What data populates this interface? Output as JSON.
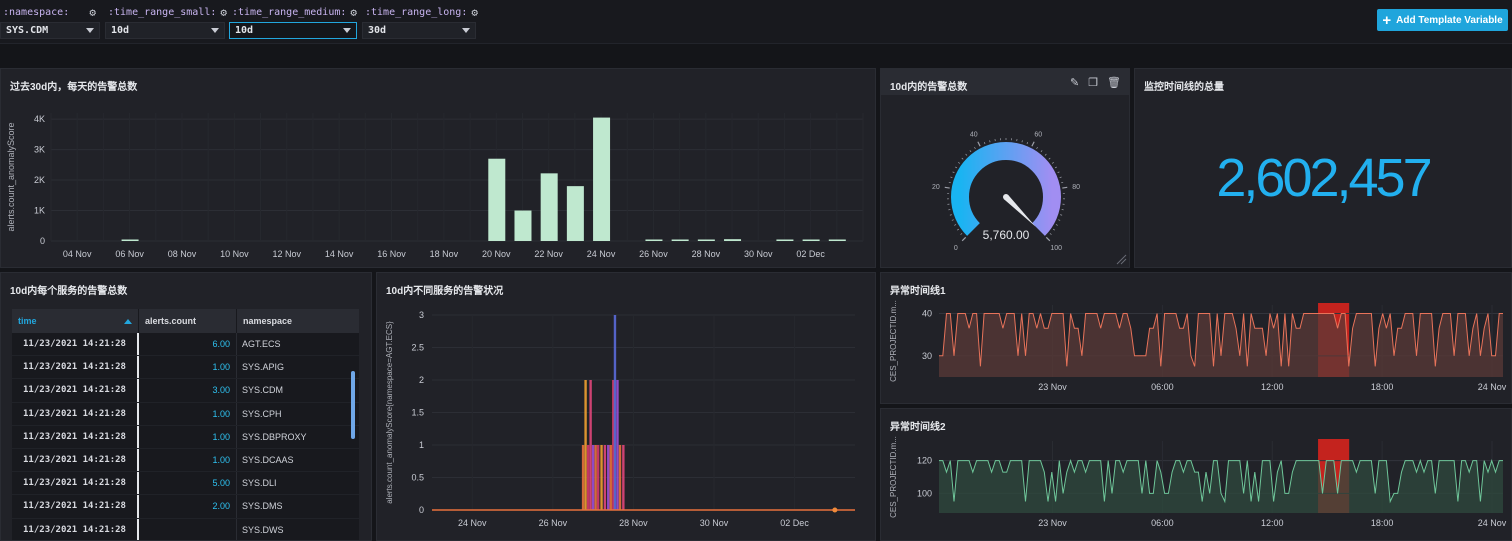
{
  "template_vars": [
    {
      "label": ":namespace:",
      "value": "SYS.CDM"
    },
    {
      "label": ":time_range_small:",
      "value": "10d"
    },
    {
      "label": ":time_range_medium:",
      "value": "10d"
    },
    {
      "label": ":time_range_long:",
      "value": "30d"
    }
  ],
  "add_template_variable": "Add Template Variable",
  "cells": {
    "daily_alerts": {
      "title": "过去30d内，每天的告警总数",
      "ylabel": "alerts.count_anomalyScore",
      "chart_data": {
        "type": "bar",
        "ylim": [
          0,
          4200
        ],
        "yticks": [
          "0",
          "1K",
          "2K",
          "3K",
          "4K"
        ],
        "ytick_values": [
          0,
          1000,
          2000,
          3000,
          4000
        ],
        "x_tick_labels": [
          "04 Nov",
          "06 Nov",
          "08 Nov",
          "10 Nov",
          "12 Nov",
          "14 Nov",
          "16 Nov",
          "18 Nov",
          "20 Nov",
          "22 Nov",
          "24 Nov",
          "26 Nov",
          "28 Nov",
          "30 Nov",
          "02 Dec"
        ],
        "x_start": "2021-11-03",
        "bars": [
          {
            "date": "2021-11-06",
            "value": 40
          },
          {
            "date": "2021-11-20",
            "value": 2700
          },
          {
            "date": "2021-11-21",
            "value": 1000
          },
          {
            "date": "2021-11-22",
            "value": 2220
          },
          {
            "date": "2021-11-23",
            "value": 1800
          },
          {
            "date": "2021-11-24",
            "value": 4050
          },
          {
            "date": "2021-11-26",
            "value": 30
          },
          {
            "date": "2021-11-27",
            "value": 40
          },
          {
            "date": "2021-11-28",
            "value": 20
          },
          {
            "date": "2021-11-29",
            "value": 60
          },
          {
            "date": "2021-12-01",
            "value": 30
          },
          {
            "date": "2021-12-02",
            "value": 20
          },
          {
            "date": "2021-12-03",
            "value": 30
          }
        ]
      }
    },
    "alerts_10d": {
      "title": "10d内的告警总数",
      "gauge": {
        "min": 0,
        "max": 100,
        "ticks": [
          "0",
          "20",
          "40",
          "60",
          "80",
          "100"
        ],
        "value_label": "5,760.00",
        "fill_fraction": 1
      }
    },
    "monitor_total": {
      "title": "监控时间线的总量",
      "value": "2,602,457"
    },
    "service_table": {
      "title": "10d内每个服务的告警总数",
      "columns": [
        "time",
        "alerts.count",
        "namespace"
      ],
      "rows": [
        [
          "11/23/2021  14:21:28",
          "6.00",
          "AGT.ECS"
        ],
        [
          "11/23/2021  14:21:28",
          "1.00",
          "SYS.APIG"
        ],
        [
          "11/23/2021  14:21:28",
          "3.00",
          "SYS.CDM"
        ],
        [
          "11/23/2021  14:21:28",
          "1.00",
          "SYS.CPH"
        ],
        [
          "11/23/2021  14:21:28",
          "1.00",
          "SYS.DBPROXY"
        ],
        [
          "11/23/2021  14:21:28",
          "1.00",
          "SYS.DCAAS"
        ],
        [
          "11/23/2021  14:21:28",
          "5.00",
          "SYS.DLI"
        ],
        [
          "11/23/2021  14:21:28",
          "2.00",
          "SYS.DMS"
        ],
        [
          "11/23/2021  14:21:28",
          "",
          "SYS.DWS"
        ]
      ]
    },
    "service_status": {
      "title": "10d内不同服务的告警状况",
      "ylabel": "alerts.count_anomalyScore{namespace=AGT.ECS}",
      "chart_data": {
        "type": "bar",
        "ylim": [
          0,
          3
        ],
        "yticks": [
          "0",
          "0.5",
          "1",
          "1.5",
          "2",
          "2.5",
          "3"
        ],
        "ytick_values": [
          0,
          0.5,
          1,
          1.5,
          2,
          2.5,
          3
        ],
        "x_tick_labels": [
          "24 Nov",
          "26 Nov",
          "28 Nov",
          "30 Nov",
          "02 Dec"
        ],
        "x_start": "2021-11-23T00:00",
        "x_end": "2021-12-03T12:00",
        "colors": [
          "#e8713c",
          "#d43a6a",
          "#9b4fd6",
          "#f0a030",
          "#e0467a",
          "#5a6ad8"
        ],
        "bars": [
          {
            "t": "2021-11-26T18:00",
            "value": 1,
            "color": "#e8713c"
          },
          {
            "t": "2021-11-26T19:30",
            "value": 2,
            "color": "#f0a030"
          },
          {
            "t": "2021-11-26T21:00",
            "value": 1,
            "color": "#d43a6a"
          },
          {
            "t": "2021-11-26T22:30",
            "value": 2,
            "color": "#e0467a"
          },
          {
            "t": "2021-11-27T00:00",
            "value": 1,
            "color": "#9b4fd6"
          },
          {
            "t": "2021-11-27T01:30",
            "value": 1,
            "color": "#e8713c"
          },
          {
            "t": "2021-11-27T03:00",
            "value": 1,
            "color": "#d43a6a"
          },
          {
            "t": "2021-11-27T05:00",
            "value": 1,
            "color": "#f0a030"
          },
          {
            "t": "2021-11-27T07:00",
            "value": 1,
            "color": "#e0467a"
          },
          {
            "t": "2021-11-27T09:00",
            "value": 1,
            "color": "#9b4fd6"
          },
          {
            "t": "2021-11-27T10:30",
            "value": 1,
            "color": "#e8713c"
          },
          {
            "t": "2021-11-27T12:00",
            "value": 2,
            "color": "#d43a6a"
          },
          {
            "t": "2021-11-27T13:00",
            "value": 3,
            "color": "#5a6ad8"
          },
          {
            "t": "2021-11-27T14:30",
            "value": 2,
            "color": "#9b4fd6"
          },
          {
            "t": "2021-11-27T16:00",
            "value": 1,
            "color": "#e8713c"
          },
          {
            "t": "2021-11-27T18:00",
            "value": 1,
            "color": "#e0467a"
          }
        ],
        "marker": {
          "t": "2021-12-03T00:00",
          "value": 0,
          "color": "#f08a3a"
        }
      }
    },
    "anomaly1": {
      "title": "异常时间线1",
      "ylabel": "CES_PROJECTID.m...",
      "chart_data": {
        "type": "line",
        "color": "#e8735a",
        "fill": "#5a3a37",
        "ylim": [
          25,
          42
        ],
        "yticks": [
          "30",
          "40"
        ],
        "ytick_values": [
          30,
          40
        ],
        "x_tick_labels": [
          "23 Nov",
          "06:00",
          "12:00",
          "18:00",
          "24 Nov"
        ],
        "x_tick_hours": [
          0,
          6,
          12,
          18,
          24
        ],
        "x_hours_range": [
          -6.2,
          24.6
        ],
        "highlight_hours": [
          14.5,
          16.2
        ],
        "highlight_color": "#c4231e"
      }
    },
    "anomaly2": {
      "title": "异常时间线2",
      "ylabel": "CES_PROJECTID.m...",
      "chart_data": {
        "type": "line",
        "color": "#6fc79a",
        "fill": "#2f4a3d",
        "ylim": [
          88,
          132
        ],
        "yticks": [
          "100",
          "120"
        ],
        "ytick_values": [
          100,
          120
        ],
        "x_tick_labels": [
          "23 Nov",
          "06:00",
          "12:00",
          "18:00",
          "24 Nov"
        ],
        "x_tick_hours": [
          0,
          6,
          12,
          18,
          24
        ],
        "x_hours_range": [
          -6.2,
          24.6
        ],
        "highlight_hours": [
          14.5,
          16.2
        ],
        "highlight_color": "#c4231e"
      }
    }
  }
}
